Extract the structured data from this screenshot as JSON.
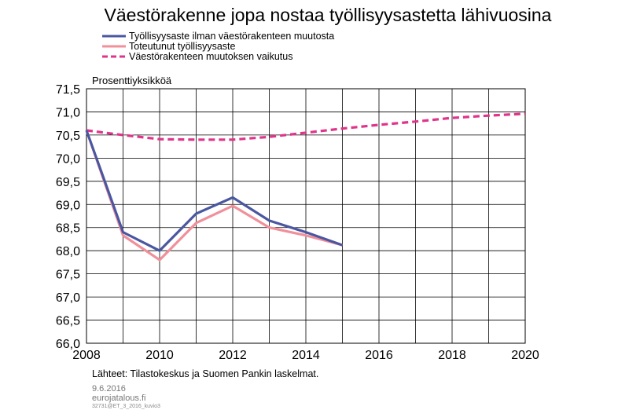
{
  "chart_data": {
    "type": "line",
    "title": "Väestörakenne jopa nostaa työllisyysastetta lähivuosina",
    "ylabel": "Prosenttiyksikköä",
    "xlabel": "",
    "xlim": [
      2008,
      2020
    ],
    "ylim": [
      66.0,
      71.5
    ],
    "x_ticks": [
      2008,
      2010,
      2012,
      2014,
      2016,
      2018,
      2020
    ],
    "x_tick_labels": [
      "2008",
      "2010",
      "2012",
      "2014",
      "2016",
      "2018",
      "2020"
    ],
    "y_ticks": [
      66.0,
      66.5,
      67.0,
      67.5,
      68.0,
      68.5,
      69.0,
      69.5,
      70.0,
      70.5,
      71.0,
      71.5
    ],
    "y_tick_labels": [
      "66,0",
      "66,5",
      "67,0",
      "67,5",
      "68,0",
      "68,5",
      "69,0",
      "69,5",
      "70,0",
      "70,5",
      "71,0",
      "71,5"
    ],
    "grid": true,
    "legend_position": "top-left",
    "series": [
      {
        "name": "Työllisyysaste ilman väestörakenteen muutosta",
        "color": "#4a57a0",
        "dash": "solid",
        "x": [
          2008,
          2009,
          2010,
          2011,
          2012,
          2013,
          2014,
          2015
        ],
        "values": [
          70.6,
          68.4,
          68.0,
          68.8,
          69.15,
          68.65,
          68.4,
          68.12
        ]
      },
      {
        "name": "Toteutunut työllisyysaste",
        "color": "#f0909a",
        "dash": "solid",
        "x": [
          2008,
          2009,
          2010,
          2011,
          2012,
          2013,
          2014,
          2015
        ],
        "values": [
          70.6,
          68.33,
          67.8,
          68.6,
          68.97,
          68.5,
          68.33,
          68.12
        ]
      },
      {
        "name": "Väestörakenteen muutoksen vaikutus",
        "color": "#e0338a",
        "dash": "dashed",
        "x": [
          2008,
          2009,
          2010,
          2011,
          2012,
          2013,
          2014,
          2015,
          2016,
          2017,
          2018,
          2019,
          2020
        ],
        "values": [
          70.6,
          70.5,
          70.41,
          70.4,
          70.4,
          70.46,
          70.55,
          70.64,
          70.72,
          70.79,
          70.87,
          70.92,
          70.96
        ]
      }
    ],
    "source": "Lähteet: Tilastokeskus ja Suomen Pankin laskelmat."
  },
  "footer": {
    "date": "9.6.2016",
    "site": "eurojatalous.fi",
    "code": "32731@ET_3_2016_kuvio3"
  }
}
